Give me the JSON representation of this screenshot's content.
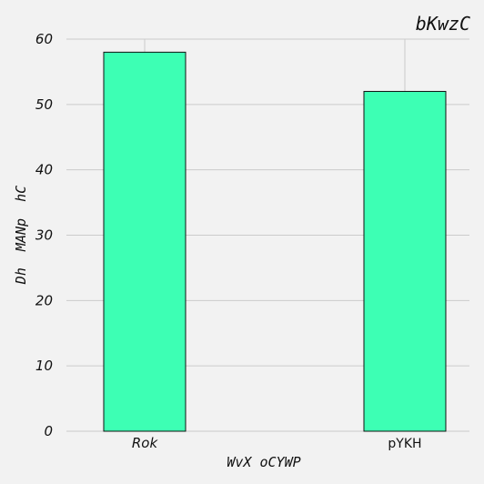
{
  "chart_data": {
    "type": "bar",
    "title": "bKwzC",
    "xlabel": "WvX oCYWP",
    "ylabel": "Dh  MANp  hC",
    "categories": [
      "Rok",
      "pYKH"
    ],
    "values": [
      58,
      52
    ],
    "ylim": [
      0,
      60
    ],
    "yticks": [
      0,
      10,
      20,
      30,
      40,
      50,
      60
    ],
    "grid": true,
    "bar_color": "#3dffb4",
    "background": "#f2f2f2"
  }
}
